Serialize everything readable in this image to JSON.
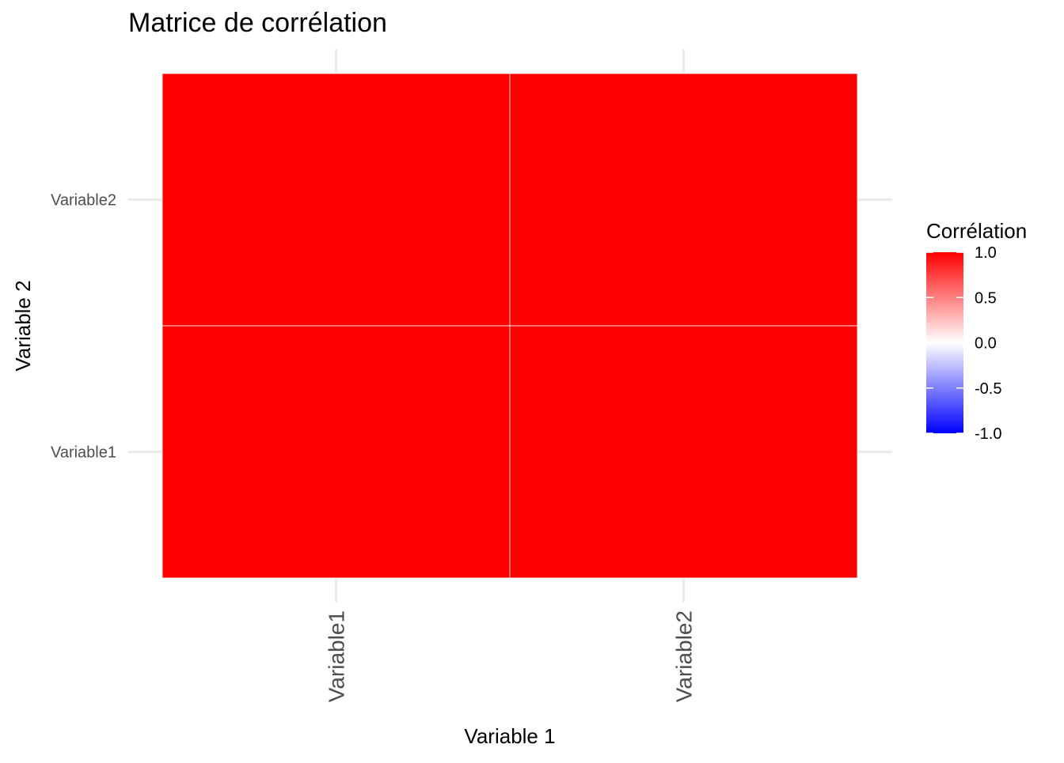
{
  "chart_data": {
    "type": "heatmap",
    "title": "Matrice de corrélation",
    "xlabel": "Variable 1",
    "ylabel": "Variable 2",
    "x_categories": [
      "Variable1",
      "Variable2"
    ],
    "y_categories": [
      "Variable1",
      "Variable2"
    ],
    "cells": [
      {
        "x": "Variable1",
        "y": "Variable1",
        "value": 1.0
      },
      {
        "x": "Variable2",
        "y": "Variable1",
        "value": 1.0
      },
      {
        "x": "Variable1",
        "y": "Variable2",
        "value": 1.0
      },
      {
        "x": "Variable2",
        "y": "Variable2",
        "value": 1.0
      }
    ],
    "legend": {
      "title": "Corrélation",
      "placement": "right",
      "range": [
        -1.0,
        1.0
      ],
      "breaks": [
        1.0,
        0.5,
        0.0,
        -0.5,
        -1.0
      ],
      "labels": [
        "1.0",
        "0.5",
        "0.0",
        "-0.5",
        "-1.0"
      ],
      "colors": {
        "low": "#0000FF",
        "mid": "#FFFFFF",
        "high": "#FF0000"
      }
    },
    "grid": true
  }
}
